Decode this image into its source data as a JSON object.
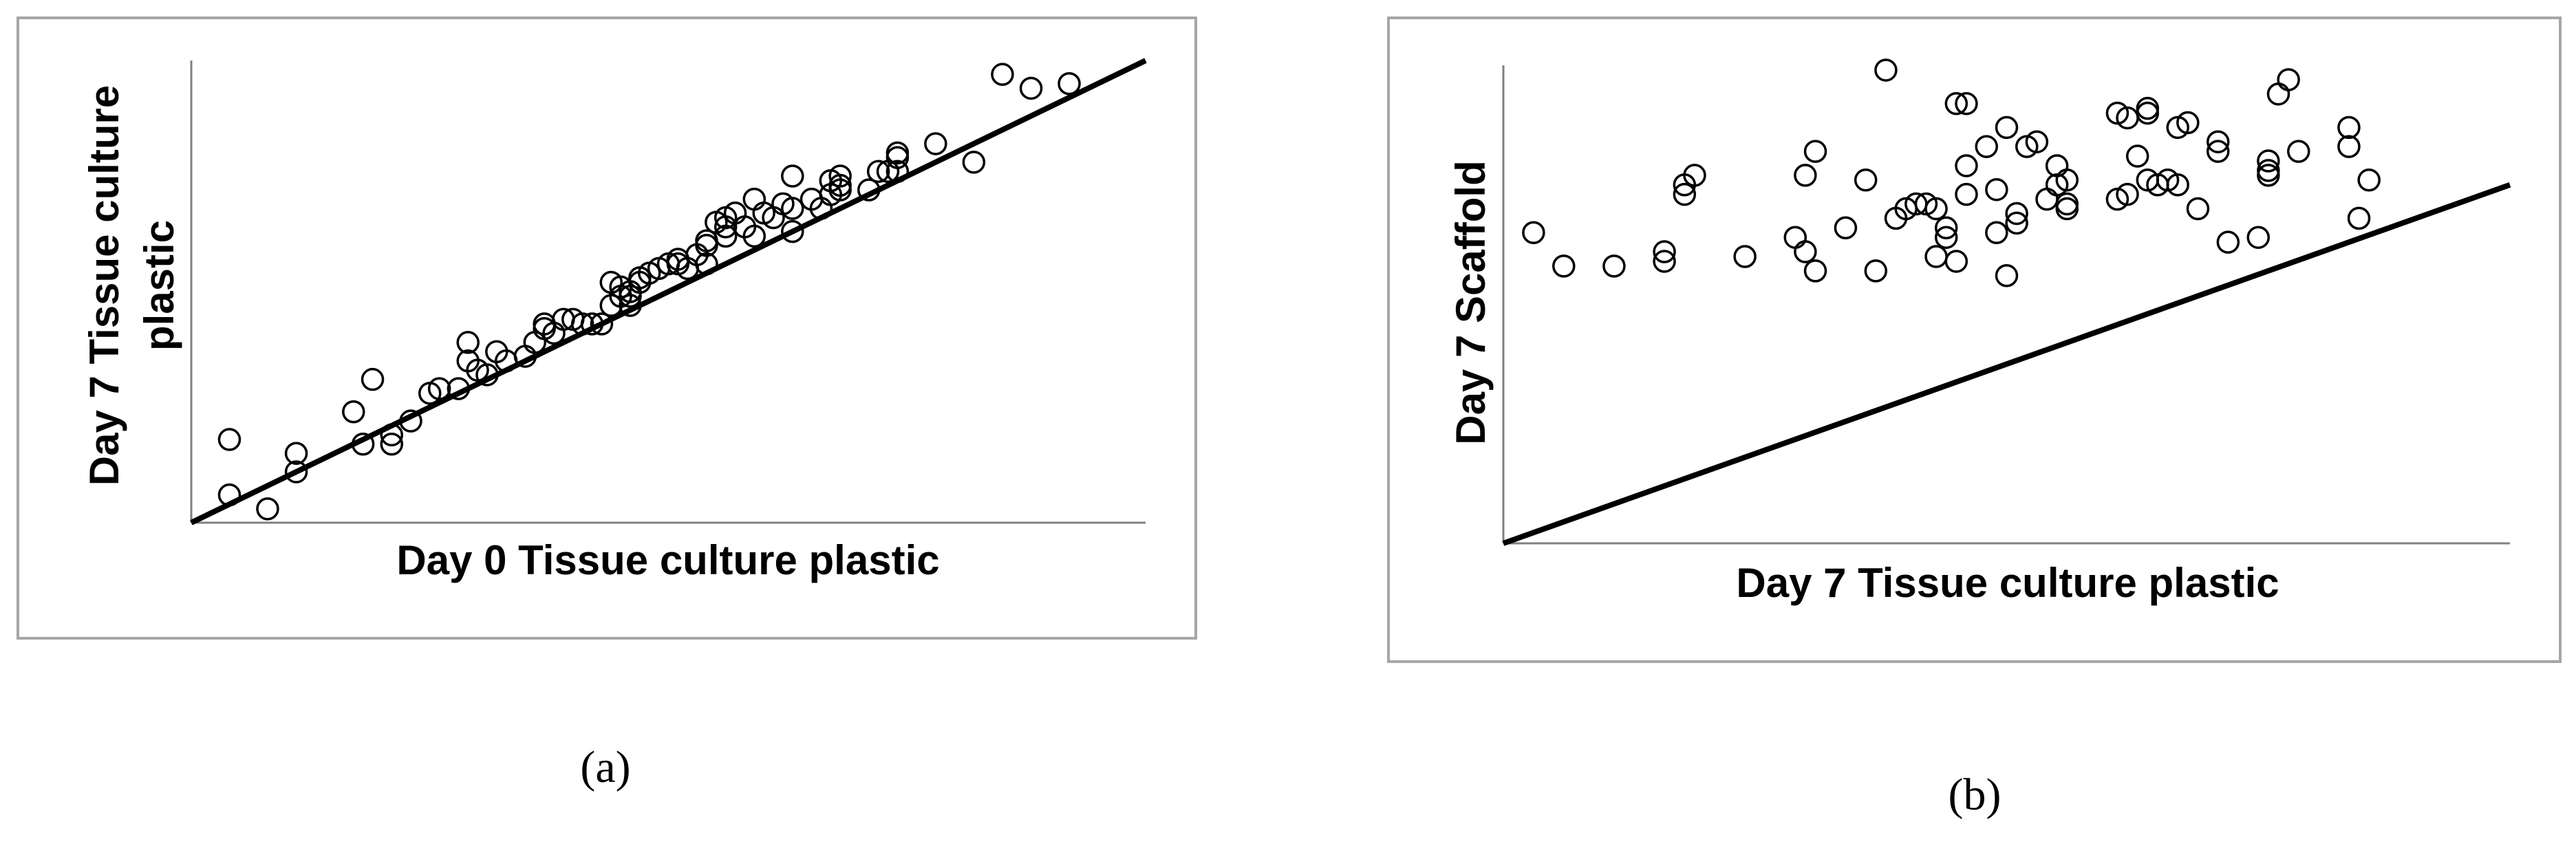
{
  "chart_data": [
    {
      "type": "scatter",
      "panel_label": "(a)",
      "xlabel": "Day 0 Tissue culture plastic",
      "ylabel": "Day 7 Tissue culture plastic",
      "xlim": [
        0,
        100
      ],
      "ylim": [
        0,
        100
      ],
      "tick_labels": false,
      "grid": false,
      "points": [
        [
          4,
          6
        ],
        [
          4,
          18
        ],
        [
          8,
          3
        ],
        [
          11,
          15
        ],
        [
          11,
          11
        ],
        [
          17,
          24
        ],
        [
          18,
          17
        ],
        [
          19,
          31
        ],
        [
          21,
          19
        ],
        [
          21,
          17
        ],
        [
          23,
          22
        ],
        [
          25,
          28
        ],
        [
          26,
          29
        ],
        [
          28,
          29
        ],
        [
          29,
          39
        ],
        [
          29,
          35
        ],
        [
          30,
          33
        ],
        [
          31,
          32
        ],
        [
          32,
          37
        ],
        [
          33,
          35
        ],
        [
          35,
          36
        ],
        [
          36,
          39
        ],
        [
          37,
          43
        ],
        [
          37,
          42
        ],
        [
          38,
          41
        ],
        [
          39,
          44
        ],
        [
          40,
          44
        ],
        [
          41,
          43
        ],
        [
          42,
          43
        ],
        [
          43,
          43
        ],
        [
          44,
          47
        ],
        [
          44,
          52
        ],
        [
          45,
          51
        ],
        [
          45,
          49
        ],
        [
          46,
          47
        ],
        [
          46,
          50
        ],
        [
          46,
          49
        ],
        [
          47,
          53
        ],
        [
          47,
          52
        ],
        [
          48,
          54
        ],
        [
          49,
          55
        ],
        [
          50,
          56
        ],
        [
          51,
          56
        ],
        [
          51,
          57
        ],
        [
          52,
          55
        ],
        [
          53,
          58
        ],
        [
          54,
          56
        ],
        [
          54,
          60
        ],
        [
          54,
          61
        ],
        [
          55,
          65
        ],
        [
          56,
          66
        ],
        [
          56,
          62
        ],
        [
          56,
          64
        ],
        [
          57,
          67
        ],
        [
          58,
          64
        ],
        [
          59,
          70
        ],
        [
          59,
          62
        ],
        [
          60,
          67
        ],
        [
          61,
          66
        ],
        [
          62,
          69
        ],
        [
          63,
          75
        ],
        [
          63,
          68
        ],
        [
          63,
          63
        ],
        [
          65,
          70
        ],
        [
          66,
          68
        ],
        [
          67,
          71
        ],
        [
          67,
          74
        ],
        [
          68,
          72
        ],
        [
          68,
          73
        ],
        [
          68,
          75
        ],
        [
          71,
          72
        ],
        [
          72,
          76
        ],
        [
          73,
          76
        ],
        [
          74,
          80
        ],
        [
          74,
          76
        ],
        [
          74,
          79
        ],
        [
          78,
          82
        ],
        [
          82,
          78
        ],
        [
          85,
          97
        ],
        [
          88,
          94
        ],
        [
          92,
          95
        ]
      ],
      "fit_line": [
        [
          0,
          0
        ],
        [
          100,
          100
        ]
      ]
    },
    {
      "type": "scatter",
      "panel_label": "(b)",
      "xlabel": "Day 7 Tissue culture plastic",
      "ylabel": "Day 7 Scaffold",
      "xlim": [
        0,
        100
      ],
      "ylim": [
        0,
        100
      ],
      "tick_labels": false,
      "grid": false,
      "points": [
        [
          3,
          65
        ],
        [
          6,
          58
        ],
        [
          11,
          58
        ],
        [
          16,
          61
        ],
        [
          16,
          59
        ],
        [
          18,
          75
        ],
        [
          18,
          73
        ],
        [
          19,
          77
        ],
        [
          24,
          60
        ],
        [
          29,
          64
        ],
        [
          30,
          61
        ],
        [
          31,
          57
        ],
        [
          31,
          82
        ],
        [
          30,
          77
        ],
        [
          34,
          66
        ],
        [
          36,
          76
        ],
        [
          37,
          57
        ],
        [
          38,
          99
        ],
        [
          39,
          68
        ],
        [
          40,
          70
        ],
        [
          41,
          71
        ],
        [
          42,
          71
        ],
        [
          43,
          70
        ],
        [
          43,
          60
        ],
        [
          44,
          66
        ],
        [
          44,
          64
        ],
        [
          45,
          92
        ],
        [
          45,
          59
        ],
        [
          46,
          79
        ],
        [
          46,
          92
        ],
        [
          46,
          73
        ],
        [
          48,
          83
        ],
        [
          49,
          65
        ],
        [
          49,
          74
        ],
        [
          50,
          87
        ],
        [
          50,
          56
        ],
        [
          51,
          67
        ],
        [
          51,
          69
        ],
        [
          52,
          83
        ],
        [
          53,
          84
        ],
        [
          54,
          72
        ],
        [
          55,
          75
        ],
        [
          55,
          79
        ],
        [
          56,
          76
        ],
        [
          56,
          70
        ],
        [
          56,
          71
        ],
        [
          61,
          90
        ],
        [
          61,
          72
        ],
        [
          62,
          73
        ],
        [
          62,
          89
        ],
        [
          63,
          81
        ],
        [
          64,
          90
        ],
        [
          64,
          91
        ],
        [
          64,
          76
        ],
        [
          65,
          75
        ],
        [
          66,
          76
        ],
        [
          67,
          87
        ],
        [
          67,
          75
        ],
        [
          68,
          88
        ],
        [
          69,
          70
        ],
        [
          71,
          82
        ],
        [
          71,
          84
        ],
        [
          72,
          63
        ],
        [
          75,
          64
        ],
        [
          76,
          77
        ],
        [
          76,
          78
        ],
        [
          76,
          80
        ],
        [
          77,
          94
        ],
        [
          78,
          97
        ],
        [
          79,
          82
        ],
        [
          84,
          83
        ],
        [
          84,
          87
        ],
        [
          85,
          68
        ],
        [
          86,
          76
        ]
      ],
      "fit_line": [
        [
          0,
          0
        ],
        [
          100,
          75
        ]
      ]
    }
  ]
}
